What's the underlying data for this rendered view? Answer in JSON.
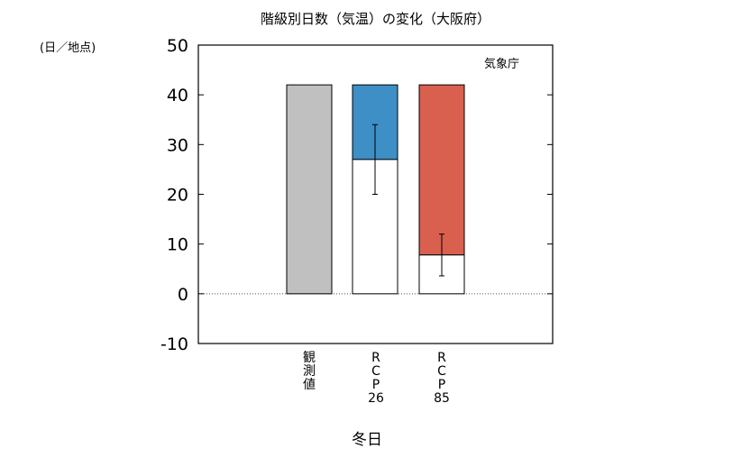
{
  "chart_data": {
    "type": "bar",
    "title": "階級別日数（気温）の変化（大阪府）",
    "ylabel": "(日／地点)",
    "xlabel": "冬日",
    "source": "気象庁",
    "ylim": [
      -10,
      50
    ],
    "yticks": [
      "50",
      "40",
      "30",
      "20",
      "10",
      "0",
      "-10"
    ],
    "categories": [
      {
        "lines": [
          "観",
          "測",
          "値"
        ]
      },
      {
        "lines": [
          "R",
          "C",
          "P",
          "26"
        ]
      },
      {
        "lines": [
          "R",
          "C",
          "P",
          "85"
        ]
      }
    ],
    "bars": [
      {
        "top": 42,
        "future": null,
        "error": null
      },
      {
        "top": 42,
        "future": 27,
        "error": [
          20,
          34
        ]
      },
      {
        "top": 42,
        "future": 7.8,
        "error": [
          3.6,
          12
        ]
      }
    ]
  },
  "colors": {
    "observed": "#c0c0c0",
    "rcp26": "#3d8fc5",
    "rcp85": "#d9604e",
    "future_fill": "#ffffff"
  }
}
